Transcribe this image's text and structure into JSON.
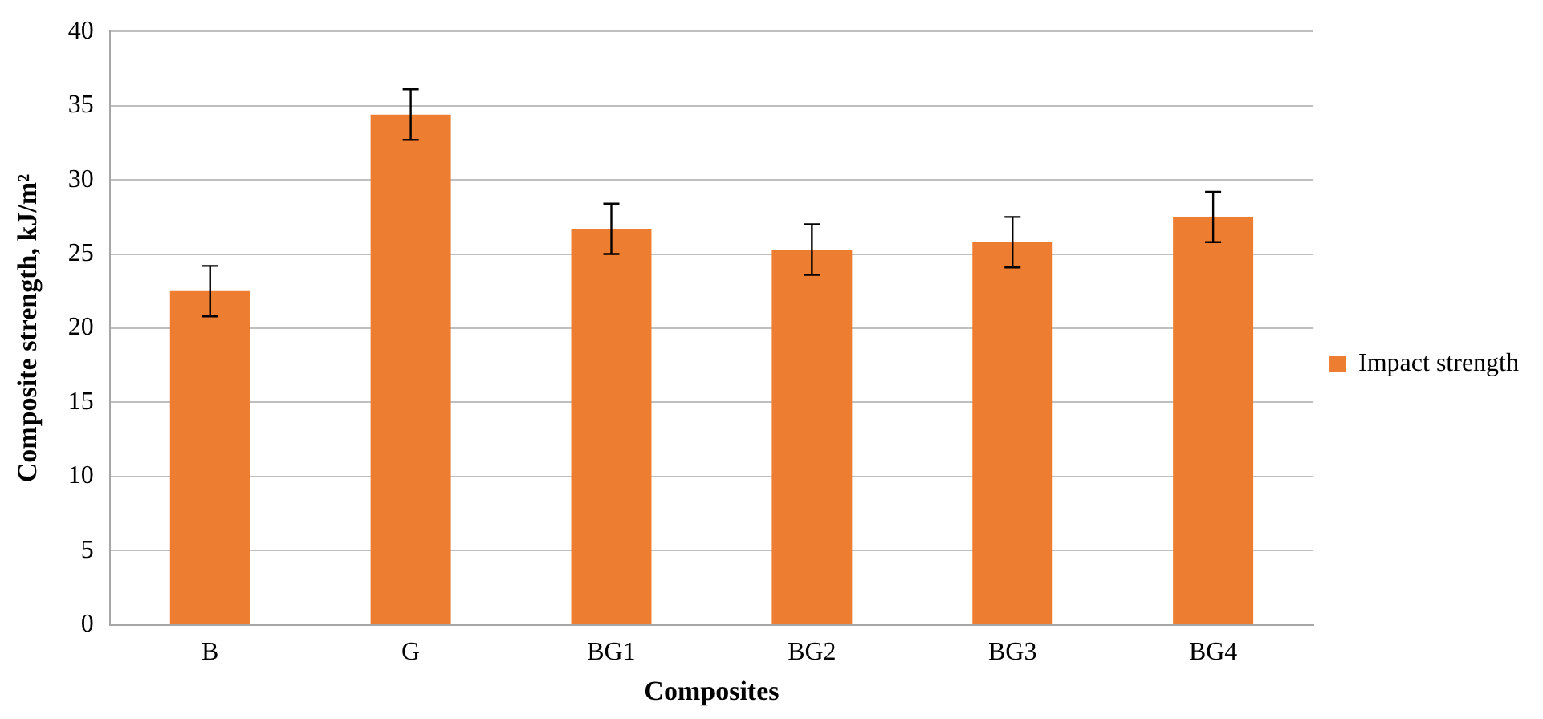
{
  "chart_data": {
    "type": "bar",
    "xlabel": "Composites",
    "ylabel": "Composite strength, kJ/m²",
    "categories": [
      "B",
      "G",
      "BG1",
      "BG2",
      "BG3",
      "BG4"
    ],
    "series": [
      {
        "name": "Impact strength",
        "color": "#ed7d31",
        "values": [
          22.5,
          34.4,
          26.7,
          25.3,
          25.8,
          27.5
        ],
        "errors": [
          1.7,
          1.7,
          1.7,
          1.7,
          1.7,
          1.7
        ]
      }
    ],
    "ylim": [
      0,
      40
    ],
    "yticks": [
      0,
      5,
      10,
      15,
      20,
      25,
      30,
      35,
      40
    ],
    "grid": "y",
    "legend": "right"
  }
}
